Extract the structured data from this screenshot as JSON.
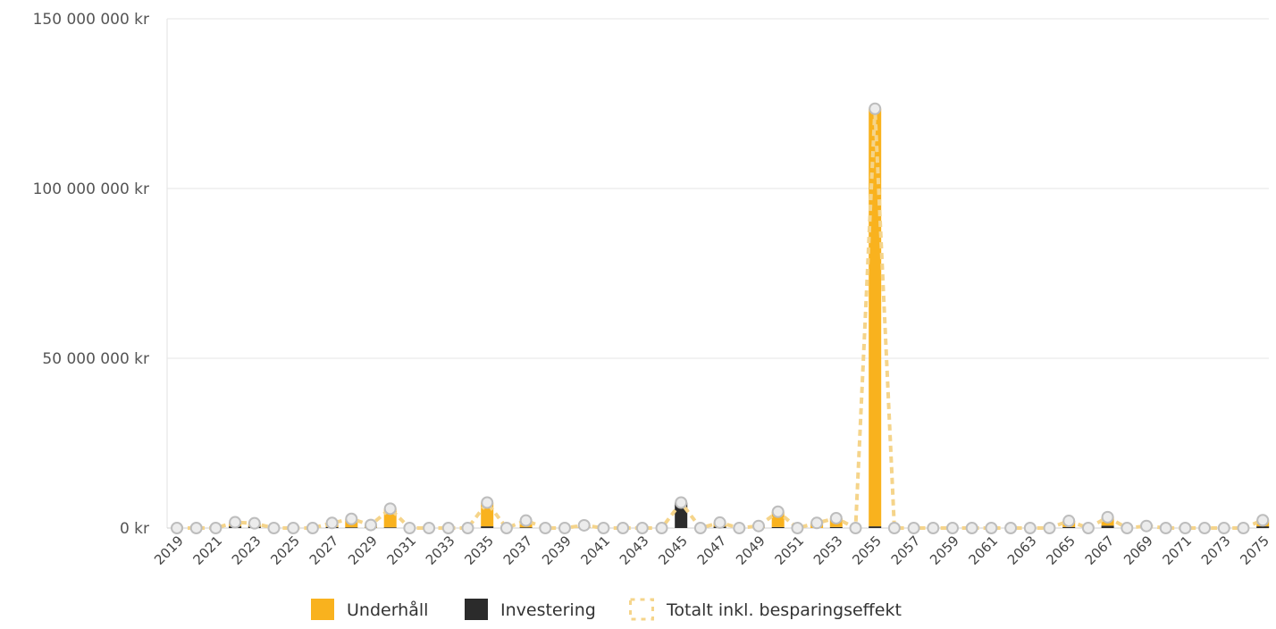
{
  "chart_data": {
    "type": "bar",
    "currency_unit": "kr",
    "ylim": [
      0,
      150000000
    ],
    "yticks": [
      0,
      50000000,
      100000000,
      150000000
    ],
    "ytick_labels": [
      "0 kr",
      "50 000 000 kr",
      "100 000 000 kr",
      "150 000 000 kr"
    ],
    "categories": [
      2019,
      2020,
      2021,
      2022,
      2023,
      2024,
      2025,
      2026,
      2027,
      2028,
      2029,
      2030,
      2031,
      2032,
      2033,
      2034,
      2035,
      2036,
      2037,
      2038,
      2039,
      2040,
      2041,
      2042,
      2043,
      2044,
      2045,
      2046,
      2047,
      2048,
      2049,
      2050,
      2051,
      2052,
      2053,
      2054,
      2055,
      2056,
      2057,
      2058,
      2059,
      2060,
      2061,
      2062,
      2063,
      2064,
      2065,
      2066,
      2067,
      2068,
      2069,
      2070,
      2071,
      2072,
      2073,
      2074,
      2075
    ],
    "xtick_labels": [
      "2019",
      "2021",
      "2023",
      "2025",
      "2027",
      "2029",
      "2031",
      "2033",
      "2035",
      "2037",
      "2039",
      "2041",
      "2043",
      "2045",
      "2047",
      "2049",
      "2051",
      "2053",
      "2055",
      "2057",
      "2059",
      "2061",
      "2063",
      "2065",
      "2067",
      "2069",
      "2071",
      "2073",
      "2075"
    ],
    "grid": true,
    "legend_position": "bottom",
    "series": [
      {
        "name": "Underhåll",
        "kind": "bar",
        "color": "#F9B21E",
        "values": [
          0,
          0,
          0,
          1200000,
          1000000,
          0,
          0,
          0,
          1200000,
          2500000,
          800000,
          5500000,
          0,
          0,
          0,
          0,
          7000000,
          0,
          2000000,
          0,
          0,
          800000,
          0,
          0,
          0,
          0,
          0,
          0,
          1200000,
          0,
          600000,
          4500000,
          0,
          1500000,
          2600000,
          0,
          123000000,
          0,
          0,
          0,
          0,
          0,
          0,
          0,
          0,
          0,
          1800000,
          0,
          2500000,
          0,
          600000,
          0,
          0,
          0,
          0,
          0,
          1800000
        ]
      },
      {
        "name": "Investering",
        "kind": "bar",
        "color": "#2B2B2B",
        "values": [
          0,
          0,
          0,
          500000,
          400000,
          0,
          0,
          0,
          300000,
          200000,
          100000,
          200000,
          0,
          0,
          0,
          0,
          500000,
          0,
          200000,
          0,
          0,
          0,
          0,
          0,
          0,
          0,
          7500000,
          0,
          400000,
          0,
          0,
          300000,
          0,
          0,
          300000,
          0,
          500000,
          0,
          0,
          0,
          0,
          0,
          0,
          0,
          0,
          0,
          300000,
          0,
          700000,
          0,
          0,
          0,
          0,
          0,
          0,
          0,
          500000
        ]
      },
      {
        "name": "Totalt inkl. besparingseffekt",
        "kind": "line",
        "color": "#F5D48A",
        "marker_color": "#BDBDBD",
        "values": [
          0,
          0,
          0,
          1700000,
          1400000,
          0,
          0,
          0,
          1500000,
          2700000,
          900000,
          5700000,
          0,
          0,
          0,
          0,
          7500000,
          0,
          2200000,
          0,
          0,
          800000,
          0,
          0,
          0,
          0,
          7500000,
          0,
          1600000,
          0,
          600000,
          4800000,
          0,
          1500000,
          2900000,
          0,
          123500000,
          0,
          0,
          0,
          0,
          0,
          0,
          0,
          0,
          0,
          2100000,
          0,
          3200000,
          0,
          600000,
          0,
          0,
          0,
          0,
          0,
          2300000
        ]
      }
    ]
  }
}
